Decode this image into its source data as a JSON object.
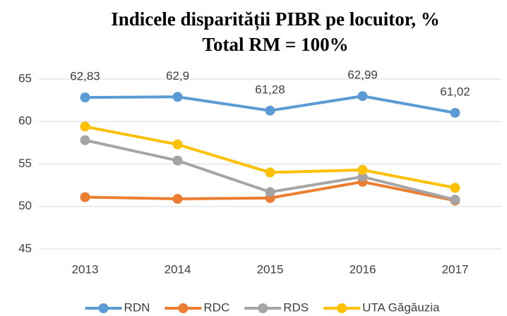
{
  "chart_data": {
    "type": "line",
    "title": [
      "Indicele disparității PIBR pe locuitor, %",
      "Total RM = 100%"
    ],
    "categories": [
      "2013",
      "2014",
      "2015",
      "2016",
      "2017"
    ],
    "series": [
      {
        "name": "RDN",
        "color": "#5b9bd5",
        "values": [
          62.83,
          62.9,
          61.28,
          62.99,
          61.02
        ],
        "value_labels": [
          "62,83",
          "62,9",
          "61,28",
          "62,99",
          "61,02"
        ]
      },
      {
        "name": "RDC",
        "color": "#ed7d31",
        "values": [
          51.1,
          50.9,
          51.0,
          52.9,
          50.7
        ]
      },
      {
        "name": "RDS",
        "color": "#a5a5a5",
        "values": [
          57.8,
          55.4,
          51.7,
          53.5,
          50.8
        ]
      },
      {
        "name": "UTA Găgăuzia",
        "color": "#ffc000",
        "values": [
          59.4,
          57.3,
          54.0,
          54.3,
          52.2
        ]
      }
    ],
    "ylim": [
      45,
      65
    ],
    "yticks": [
      45,
      50,
      55,
      60,
      65
    ],
    "grid": true,
    "legend": "bottom"
  }
}
